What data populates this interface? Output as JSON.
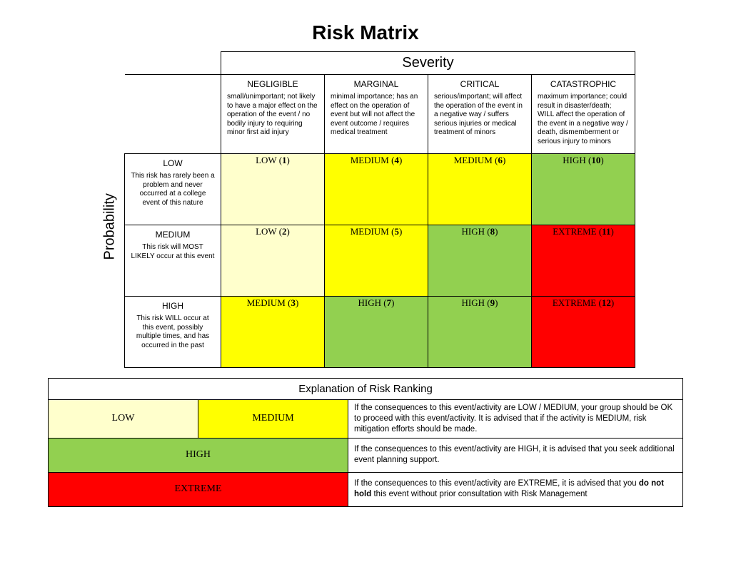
{
  "title": "Risk Matrix",
  "axes": {
    "severity_label": "Severity",
    "probability_label": "Probability"
  },
  "colors": {
    "low": "#ffffcc",
    "medium": "#ffff00",
    "high": "#92d050",
    "extreme": "#ff0000",
    "border": "#000000",
    "background": "#ffffff"
  },
  "severity_cols": [
    {
      "title": "NEGLIGIBLE",
      "desc": "small/unimportant; not likely to have a major effect on the operation of the event / no bodily injury to requiring minor first aid injury"
    },
    {
      "title": "MARGINAL",
      "desc": "minimal importance; has an effect on the operation of event but will not affect the event outcome / requires medical treatment"
    },
    {
      "title": "CRITICAL",
      "desc": "serious/important; will affect the operation of the event in a negative way / suffers serious injuries or medical treatment of minors"
    },
    {
      "title": "CATASTROPHIC",
      "desc": "maximum importance; could result in disaster/death; WILL affect the operation of the event in a negative way / death, dismemberment or serious injury to minors"
    }
  ],
  "probability_rows": [
    {
      "title": "LOW",
      "desc": "This risk has rarely been a problem and never occurred at a college event of this nature"
    },
    {
      "title": "MEDIUM",
      "desc": "This risk will MOST LIKELY occur at this event"
    },
    {
      "title": "HIGH",
      "desc": "This risk WILL occur at this event, possibly multiple times, and has occurred in the past"
    }
  ],
  "cells": [
    [
      {
        "label": "LOW",
        "num": "1",
        "color": "low"
      },
      {
        "label": "MEDIUM",
        "num": "4",
        "color": "medium"
      },
      {
        "label": "MEDIUM",
        "num": "6",
        "color": "medium"
      },
      {
        "label": "HIGH",
        "num": "10",
        "color": "high"
      }
    ],
    [
      {
        "label": "LOW",
        "num": "2",
        "color": "low"
      },
      {
        "label": "MEDIUM",
        "num": "5",
        "color": "medium"
      },
      {
        "label": "HIGH",
        "num": "8",
        "color": "high"
      },
      {
        "label": "EXTREME",
        "num": "11",
        "color": "extreme"
      }
    ],
    [
      {
        "label": "MEDIUM",
        "num": "3",
        "color": "medium"
      },
      {
        "label": "HIGH",
        "num": "7",
        "color": "high"
      },
      {
        "label": "HIGH",
        "num": "9",
        "color": "high"
      },
      {
        "label": "EXTREME",
        "num": "12",
        "color": "extreme"
      }
    ]
  ],
  "explanation": {
    "header": "Explanation of Risk Ranking",
    "rows": [
      {
        "labels": [
          {
            "text": "LOW",
            "color": "low"
          },
          {
            "text": "MEDIUM",
            "color": "medium"
          }
        ],
        "desc_html": " If the consequences to this event/activity are LOW / MEDIUM, your group should be OK to proceed with this event/activity. It is advised that if the activity is MEDIUM, risk mitigation efforts should be made."
      },
      {
        "labels": [
          {
            "text": "HIGH",
            "color": "high"
          }
        ],
        "desc_html": "If the consequences to this event/activity are HIGH, it is advised that you seek additional event planning support."
      },
      {
        "labels": [
          {
            "text": "EXTREME",
            "color": "extreme"
          }
        ],
        "desc_html": "If the consequences to this event/activity are EXTREME, it is advised that you <b>do not hold</b> this event without prior consultation with Risk Management"
      }
    ]
  }
}
